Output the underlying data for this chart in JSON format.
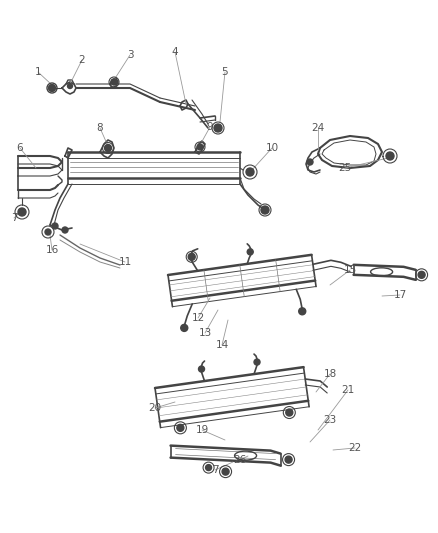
{
  "bg_color": "#ffffff",
  "part_color": "#444444",
  "label_color": "#555555",
  "callout_color": "#999999",
  "lw_part": 1.0,
  "lw_thin": 0.6,
  "figsize": [
    4.38,
    5.33
  ],
  "dpi": 100
}
